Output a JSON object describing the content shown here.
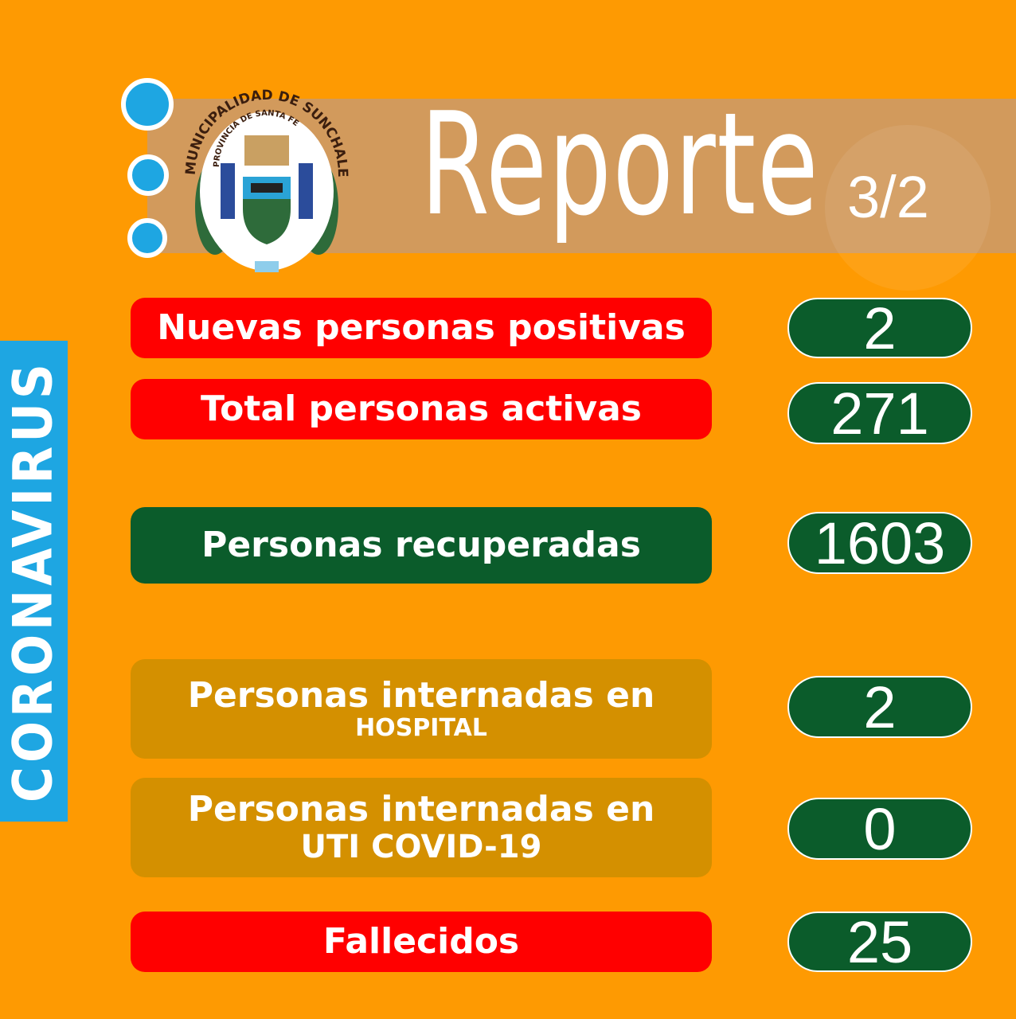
{
  "header": {
    "title": "Reporte",
    "date": "3/2",
    "logo_text": "MUNICIPALIDAD DE SUNCHALES",
    "logo_subtext": "PROVINCIA DE SANTA FE"
  },
  "sidebar": {
    "label": "CORONAVIRUS"
  },
  "rows": [
    {
      "label": "Nuevas personas positivas",
      "value": "2",
      "color": "#FF0000"
    },
    {
      "label": "Total personas activas",
      "value": "271",
      "color": "#FF0000"
    },
    {
      "label": "Personas recuperadas",
      "value": "1603",
      "color": "#0B5C2B"
    },
    {
      "label": "Personas internadas en",
      "sub": "HOSPITAL",
      "value": "2",
      "color": "#D49000"
    },
    {
      "label": "Personas internadas en",
      "sub": "UTI COVID-19",
      "value": "0",
      "color": "#D49000"
    },
    {
      "label": "Fallecidos",
      "value": "25",
      "color": "#FF0000"
    }
  ]
}
